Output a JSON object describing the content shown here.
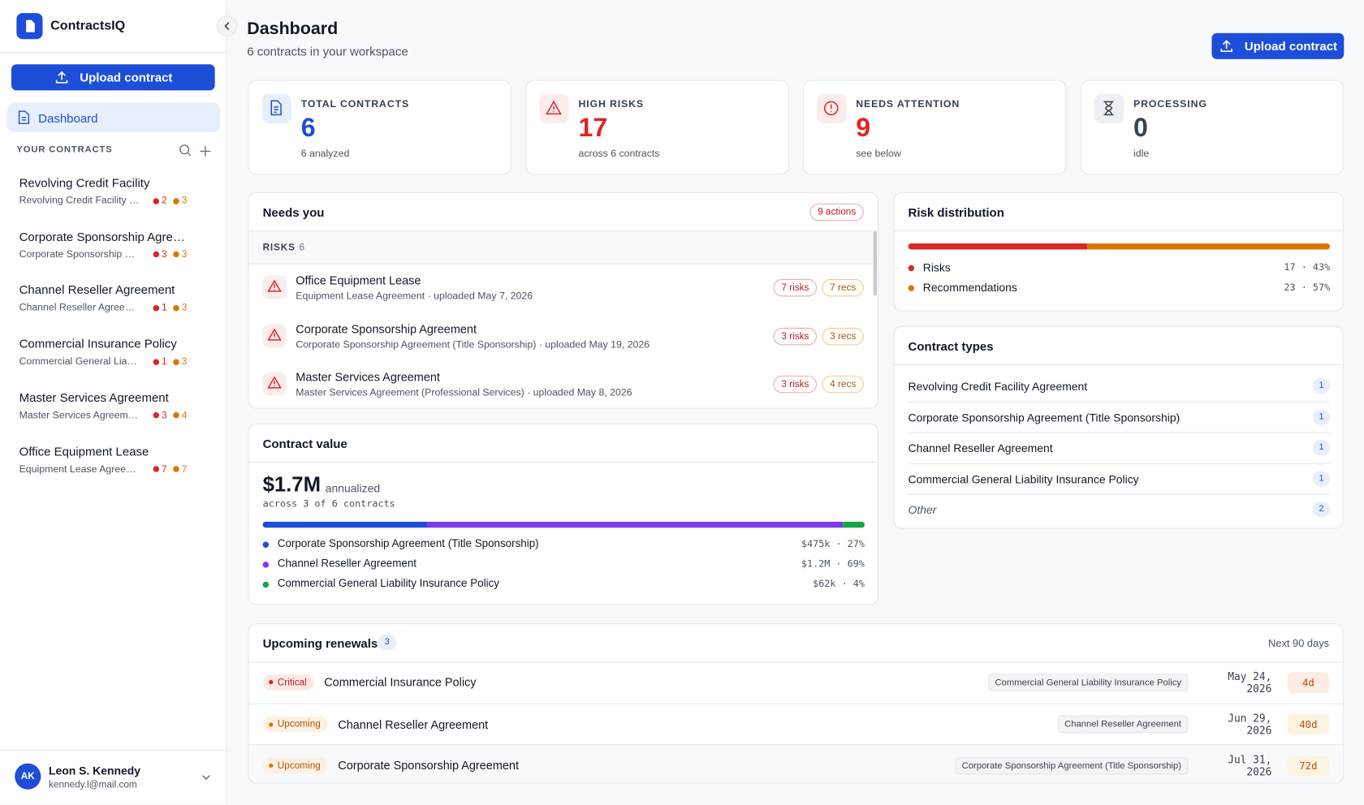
{
  "sidebar": {
    "brand": "ContractsIQ",
    "upload": "Upload contract",
    "nav": "Dashboard",
    "section": "YOUR CONTRACTS",
    "contracts": [
      {
        "title": "Revolving Credit Facility",
        "subtitle": "Revolving Credit Facility …",
        "risks": 2,
        "recs": 3
      },
      {
        "title": "Corporate Sponsorship Agre…",
        "subtitle": "Corporate Sponsorship …",
        "risks": 3,
        "recs": 3
      },
      {
        "title": "Channel Reseller Agreement",
        "subtitle": "Channel Reseller Agree…",
        "risks": 1,
        "recs": 3
      },
      {
        "title": "Commercial Insurance Policy",
        "subtitle": "Commercial General Lia…",
        "risks": 1,
        "recs": 3
      },
      {
        "title": "Master Services Agreement",
        "subtitle": "Master Services Agreem…",
        "risks": 3,
        "recs": 4
      },
      {
        "title": "Office Equipment Lease",
        "subtitle": "Equipment Lease Agree…",
        "risks": 7,
        "recs": 7
      }
    ],
    "user": {
      "initials": "AK",
      "name": "Leon S. Kennedy",
      "email": "kennedy.l@mail.com"
    }
  },
  "header": {
    "title": "Dashboard",
    "subtitle": "6 contracts in your workspace",
    "upload": "Upload contract"
  },
  "stats": [
    {
      "label": "TOTAL CONTRACTS",
      "value": 6,
      "note": "6 analyzed"
    },
    {
      "label": "HIGH RISKS",
      "value": 17,
      "note": "across 6 contracts"
    },
    {
      "label": "NEEDS ATTENTION",
      "value": 9,
      "note": "see below"
    },
    {
      "label": "PROCESSING",
      "value": 0,
      "note": "idle"
    }
  ],
  "needs_you": {
    "title": "Needs you",
    "badge": "9 actions",
    "section": "RISKS",
    "count": 6,
    "items": [
      {
        "title": "Office Equipment Lease",
        "meta": "Equipment Lease Agreement · uploaded May 7, 2026",
        "risks": "7 risks",
        "recs": "7 recs"
      },
      {
        "title": "Corporate Sponsorship Agreement",
        "meta": "Corporate Sponsorship Agreement (Title Sponsorship) · uploaded May 19, 2026",
        "risks": "3 risks",
        "recs": "3 recs"
      },
      {
        "title": "Master Services Agreement",
        "meta": "Master Services Agreement (Professional Services) · uploaded May 8, 2026",
        "risks": "3 risks",
        "recs": "4 recs"
      }
    ]
  },
  "risk_distribution": {
    "title": "Risk distribution",
    "series": [
      {
        "name": "Risks",
        "value": 17,
        "value_label": "17 · 43%",
        "color": "#dc2626"
      },
      {
        "name": "Recommendations",
        "value": 23,
        "value_label": "23 · 57%",
        "color": "#d97706"
      }
    ]
  },
  "contract_types": {
    "title": "Contract types",
    "rows": [
      {
        "name": "Revolving Credit Facility Agreement",
        "count": 1
      },
      {
        "name": "Corporate Sponsorship Agreement (Title Sponsorship)",
        "count": 1
      },
      {
        "name": "Channel Reseller Agreement",
        "count": 1
      },
      {
        "name": "Commercial General Liability Insurance Policy",
        "count": 1
      },
      {
        "name": "Other",
        "count": 2
      }
    ]
  },
  "contract_value": {
    "title": "Contract value",
    "amount": "$1.7M",
    "unit": "annualized",
    "note": "across 3 of 6 contracts",
    "series": [
      {
        "name": "Corporate Sponsorship Agreement (Title Sponsorship)",
        "value": 475000,
        "value_label": "$475k · 27%",
        "color": "#1d4ed8"
      },
      {
        "name": "Channel Reseller Agreement",
        "value": 1200000,
        "value_label": "$1.2M · 69%",
        "color": "#7c3aed"
      },
      {
        "name": "Commercial General Liability Insurance Policy",
        "value": 62000,
        "value_label": "$62k · 4%",
        "color": "#16a34a"
      }
    ]
  },
  "renewals": {
    "title": "Upcoming renewals",
    "count": 3,
    "range": "Next 90 days",
    "rows": [
      {
        "status": "Critical",
        "title": "Commercial Insurance Policy",
        "type": "Commercial General Liability Insurance Policy",
        "date": "May 24, 2026",
        "days": "4d"
      },
      {
        "status": "Upcoming",
        "title": "Channel Reseller Agreement",
        "type": "Channel Reseller Agreement",
        "date": "Jun 29, 2026",
        "days": "40d"
      },
      {
        "status": "Upcoming",
        "title": "Corporate Sponsorship Agreement",
        "type": "Corporate Sponsorship Agreement (Title Sponsorship)",
        "date": "Jul 31, 2026",
        "days": "72d"
      }
    ]
  }
}
